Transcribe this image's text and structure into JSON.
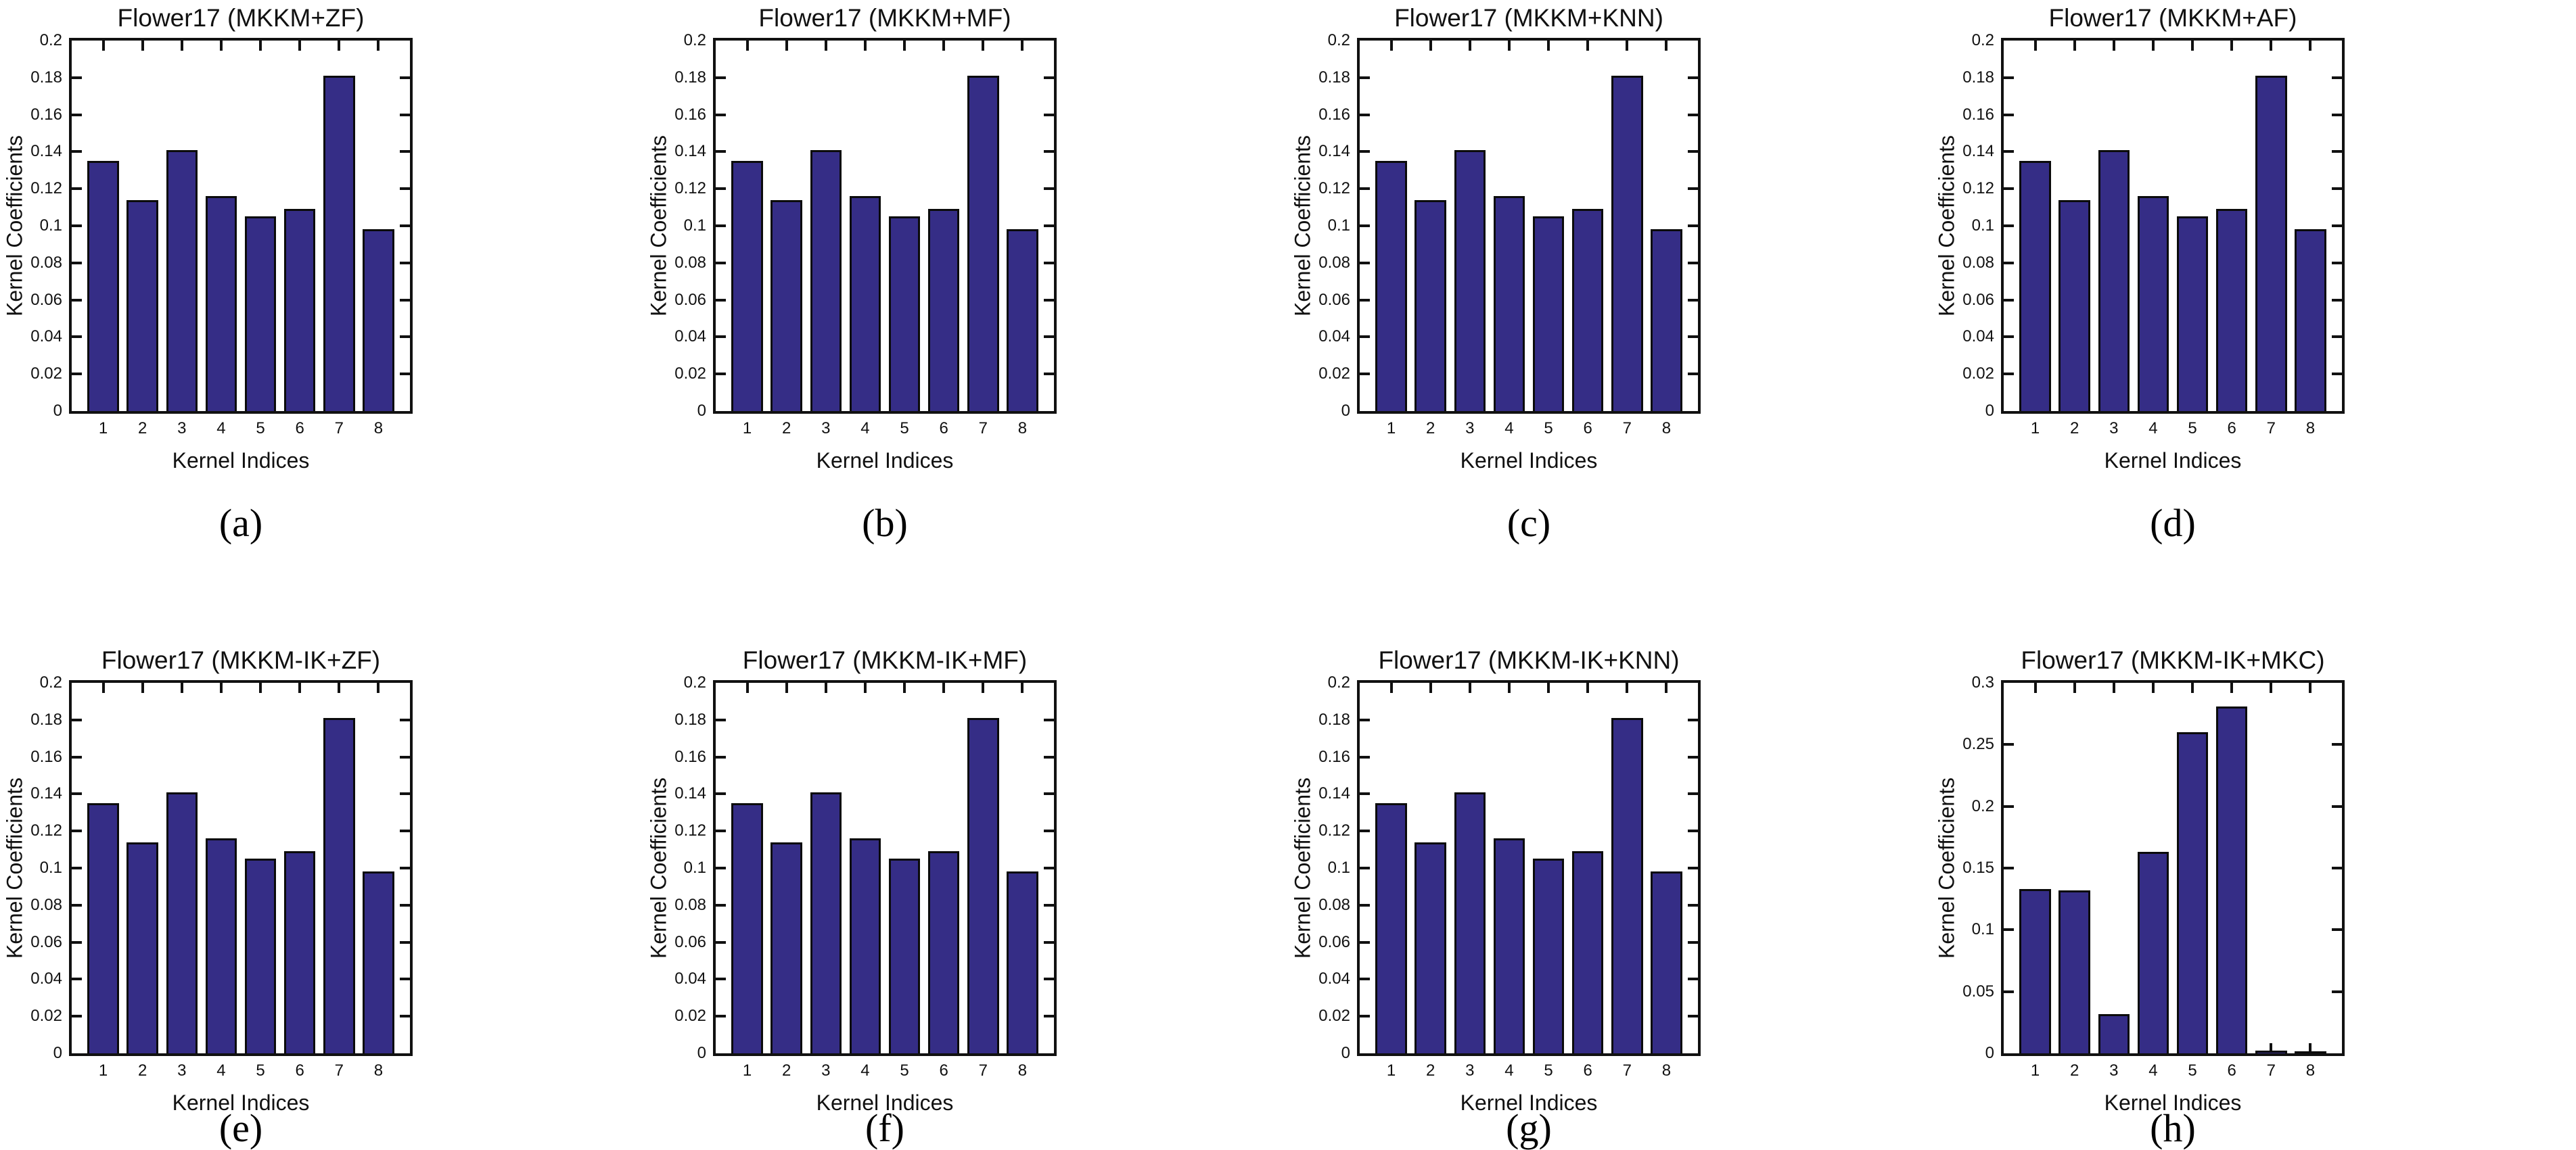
{
  "chart_data": {
    "type": "bar",
    "xlabel": "Kernel Indices",
    "ylabel": "Kernel Coefficients",
    "categories": [
      "1",
      "2",
      "3",
      "4",
      "5",
      "6",
      "7",
      "8"
    ],
    "bar_color": "#352D86",
    "axis_color": "#111111",
    "grid": "off",
    "legend": "none",
    "charts": [
      {
        "title": "Flower17 (MKKM+ZF)",
        "caption": "(a)",
        "ymax": 0.2,
        "yticks": [
          {
            "v": 0,
            "t": "0"
          },
          {
            "v": 0.02,
            "t": "0.02"
          },
          {
            "v": 0.04,
            "t": "0.04"
          },
          {
            "v": 0.06,
            "t": "0.06"
          },
          {
            "v": 0.08,
            "t": "0.08"
          },
          {
            "v": 0.1,
            "t": "0.1"
          },
          {
            "v": 0.12,
            "t": "0.12"
          },
          {
            "v": 0.14,
            "t": "0.14"
          },
          {
            "v": 0.16,
            "t": "0.16"
          },
          {
            "v": 0.18,
            "t": "0.18"
          },
          {
            "v": 0.2,
            "t": "0.2"
          }
        ],
        "values": [
          0.135,
          0.114,
          0.141,
          0.116,
          0.105,
          0.109,
          0.181,
          0.098
        ]
      },
      {
        "title": "Flower17 (MKKM+MF)",
        "caption": "(b)",
        "ymax": 0.2,
        "yticks": [
          {
            "v": 0,
            "t": "0"
          },
          {
            "v": 0.02,
            "t": "0.02"
          },
          {
            "v": 0.04,
            "t": "0.04"
          },
          {
            "v": 0.06,
            "t": "0.06"
          },
          {
            "v": 0.08,
            "t": "0.08"
          },
          {
            "v": 0.1,
            "t": "0.1"
          },
          {
            "v": 0.12,
            "t": "0.12"
          },
          {
            "v": 0.14,
            "t": "0.14"
          },
          {
            "v": 0.16,
            "t": "0.16"
          },
          {
            "v": 0.18,
            "t": "0.18"
          },
          {
            "v": 0.2,
            "t": "0.2"
          }
        ],
        "values": [
          0.135,
          0.114,
          0.141,
          0.116,
          0.105,
          0.109,
          0.181,
          0.098
        ]
      },
      {
        "title": "Flower17 (MKKM+KNN)",
        "caption": "(c)",
        "ymax": 0.2,
        "yticks": [
          {
            "v": 0,
            "t": "0"
          },
          {
            "v": 0.02,
            "t": "0.02"
          },
          {
            "v": 0.04,
            "t": "0.04"
          },
          {
            "v": 0.06,
            "t": "0.06"
          },
          {
            "v": 0.08,
            "t": "0.08"
          },
          {
            "v": 0.1,
            "t": "0.1"
          },
          {
            "v": 0.12,
            "t": "0.12"
          },
          {
            "v": 0.14,
            "t": "0.14"
          },
          {
            "v": 0.16,
            "t": "0.16"
          },
          {
            "v": 0.18,
            "t": "0.18"
          },
          {
            "v": 0.2,
            "t": "0.2"
          }
        ],
        "values": [
          0.135,
          0.114,
          0.141,
          0.116,
          0.105,
          0.109,
          0.181,
          0.098
        ]
      },
      {
        "title": "Flower17 (MKKM+AF)",
        "caption": "(d)",
        "ymax": 0.2,
        "yticks": [
          {
            "v": 0,
            "t": "0"
          },
          {
            "v": 0.02,
            "t": "0.02"
          },
          {
            "v": 0.04,
            "t": "0.04"
          },
          {
            "v": 0.06,
            "t": "0.06"
          },
          {
            "v": 0.08,
            "t": "0.08"
          },
          {
            "v": 0.1,
            "t": "0.1"
          },
          {
            "v": 0.12,
            "t": "0.12"
          },
          {
            "v": 0.14,
            "t": "0.14"
          },
          {
            "v": 0.16,
            "t": "0.16"
          },
          {
            "v": 0.18,
            "t": "0.18"
          },
          {
            "v": 0.2,
            "t": "0.2"
          }
        ],
        "values": [
          0.135,
          0.114,
          0.141,
          0.116,
          0.105,
          0.109,
          0.181,
          0.098
        ]
      },
      {
        "title": "Flower17 (MKKM-IK+ZF)",
        "caption": "(e)",
        "ymax": 0.2,
        "yticks": [
          {
            "v": 0,
            "t": "0"
          },
          {
            "v": 0.02,
            "t": "0.02"
          },
          {
            "v": 0.04,
            "t": "0.04"
          },
          {
            "v": 0.06,
            "t": "0.06"
          },
          {
            "v": 0.08,
            "t": "0.08"
          },
          {
            "v": 0.1,
            "t": "0.1"
          },
          {
            "v": 0.12,
            "t": "0.12"
          },
          {
            "v": 0.14,
            "t": "0.14"
          },
          {
            "v": 0.16,
            "t": "0.16"
          },
          {
            "v": 0.18,
            "t": "0.18"
          },
          {
            "v": 0.2,
            "t": "0.2"
          }
        ],
        "values": [
          0.135,
          0.114,
          0.141,
          0.116,
          0.105,
          0.109,
          0.181,
          0.098
        ]
      },
      {
        "title": "Flower17 (MKKM-IK+MF)",
        "caption": "(f)",
        "ymax": 0.2,
        "yticks": [
          {
            "v": 0,
            "t": "0"
          },
          {
            "v": 0.02,
            "t": "0.02"
          },
          {
            "v": 0.04,
            "t": "0.04"
          },
          {
            "v": 0.06,
            "t": "0.06"
          },
          {
            "v": 0.08,
            "t": "0.08"
          },
          {
            "v": 0.1,
            "t": "0.1"
          },
          {
            "v": 0.12,
            "t": "0.12"
          },
          {
            "v": 0.14,
            "t": "0.14"
          },
          {
            "v": 0.16,
            "t": "0.16"
          },
          {
            "v": 0.18,
            "t": "0.18"
          },
          {
            "v": 0.2,
            "t": "0.2"
          }
        ],
        "values": [
          0.135,
          0.114,
          0.141,
          0.116,
          0.105,
          0.109,
          0.181,
          0.098
        ]
      },
      {
        "title": "Flower17 (MKKM-IK+KNN)",
        "caption": "(g)",
        "ymax": 0.2,
        "yticks": [
          {
            "v": 0,
            "t": "0"
          },
          {
            "v": 0.02,
            "t": "0.02"
          },
          {
            "v": 0.04,
            "t": "0.04"
          },
          {
            "v": 0.06,
            "t": "0.06"
          },
          {
            "v": 0.08,
            "t": "0.08"
          },
          {
            "v": 0.1,
            "t": "0.1"
          },
          {
            "v": 0.12,
            "t": "0.12"
          },
          {
            "v": 0.14,
            "t": "0.14"
          },
          {
            "v": 0.16,
            "t": "0.16"
          },
          {
            "v": 0.18,
            "t": "0.18"
          },
          {
            "v": 0.2,
            "t": "0.2"
          }
        ],
        "values": [
          0.135,
          0.114,
          0.141,
          0.116,
          0.105,
          0.109,
          0.181,
          0.098
        ]
      },
      {
        "title": "Flower17 (MKKM-IK+MKC)",
        "caption": "(h)",
        "ymax": 0.3,
        "yticks": [
          {
            "v": 0,
            "t": "0"
          },
          {
            "v": 0.05,
            "t": "0.05"
          },
          {
            "v": 0.1,
            "t": "0.1"
          },
          {
            "v": 0.15,
            "t": "0.15"
          },
          {
            "v": 0.2,
            "t": "0.2"
          },
          {
            "v": 0.25,
            "t": "0.25"
          },
          {
            "v": 0.3,
            "t": "0.3"
          }
        ],
        "values": [
          0.133,
          0.132,
          0.032,
          0.163,
          0.26,
          0.281,
          0.002,
          0.001
        ]
      }
    ]
  }
}
